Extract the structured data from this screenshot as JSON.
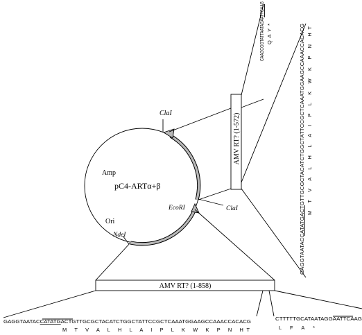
{
  "plasmid": {
    "name_prefix": "pC4-ART",
    "name_suffix": "α+β",
    "amp": "Amp",
    "ori": "Ori",
    "ndei": "NdeI",
    "ecori": "EcoRI",
    "clai_top": "ClaI",
    "clai_right": "ClaI"
  },
  "inserts": {
    "vertical_label": "AMV RT? (1-572)",
    "horizontal_label": "AMV RT? (1-858)"
  },
  "bottom_sequence": {
    "pre": "GAGGTAATAC",
    "site": "CATATG",
    "post": "ACTGTTGCGCTACATCTGGCTATTCCGCTCAAATGGAAGCCAAACCACACG",
    "aa": "M T V A L H L A I P L K W K P N HT"
  },
  "bottom_right_sequence": {
    "pre": "CTTTTTGCATAATAG",
    "site": "GAATTC",
    "post": "AAG",
    "aa": "L F A *"
  },
  "vertical_top_sequence": {
    "pre": "CAAGCGGTATTAATA",
    "site": "GAATTC",
    "post": "AAG",
    "aa": "Q A Y *"
  },
  "vertical_long_sequence": {
    "pre": "GAGGTAATAC",
    "site": "CATATG",
    "post": "ACTGTTGCGCTACATCTGGCTATTCCGCTCAAATGGAAGCCAAACCACACG",
    "aa": "M T V A L H L A I P L K W K P N HT"
  }
}
